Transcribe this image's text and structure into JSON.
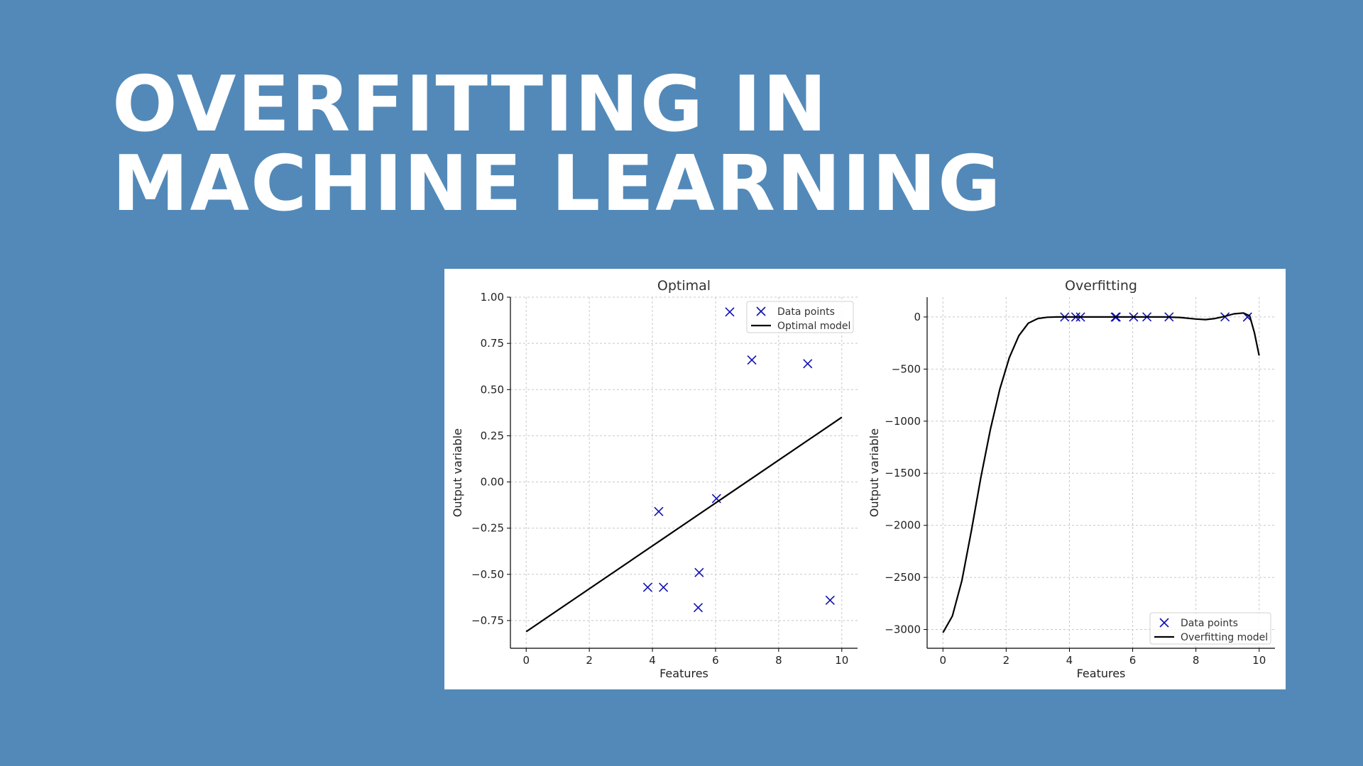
{
  "slide": {
    "title_line1": "OVERFITTING IN",
    "title_line2": "MACHINE LEARNING",
    "background_color": "#5289b8"
  },
  "colors": {
    "point_color": "#1010b0",
    "line_color": "#000000",
    "grid_color": "#c8c8c8"
  },
  "chart_data": [
    {
      "type": "scatter",
      "title": "Optimal",
      "xlabel": "Features",
      "ylabel": "Output variable",
      "xlim": [
        -0.5,
        10.5
      ],
      "ylim": [
        -0.9,
        1.0
      ],
      "xticks": [
        0,
        2,
        4,
        6,
        8,
        10
      ],
      "xtick_labels": [
        "0",
        "2",
        "4",
        "6",
        "8",
        "10"
      ],
      "yticks": [
        1.0,
        0.75,
        0.5,
        0.25,
        0.0,
        -0.25,
        -0.5,
        -0.75
      ],
      "ytick_labels": [
        "1.00",
        "0.75",
        "0.50",
        "0.25",
        "0.00",
        "−0.25",
        "−0.50",
        "−0.75"
      ],
      "grid": true,
      "legend_position": "top-right",
      "series": [
        {
          "name": "Data points",
          "kind": "scatter",
          "marker": "x",
          "x": [
            3.85,
            4.2,
            4.35,
            5.45,
            5.48,
            6.03,
            6.45,
            7.15,
            8.92,
            9.63
          ],
          "y": [
            -0.57,
            -0.16,
            -0.57,
            -0.68,
            -0.49,
            -0.09,
            0.92,
            0.66,
            0.64,
            -0.64
          ]
        },
        {
          "name": "Optimal model",
          "kind": "line",
          "x": [
            0,
            10
          ],
          "y": [
            -0.81,
            0.35
          ]
        }
      ]
    },
    {
      "type": "scatter",
      "title": "Overfitting",
      "xlabel": "Features",
      "ylabel": "Output variable",
      "xlim": [
        -0.5,
        10.5
      ],
      "ylim": [
        -3180,
        190
      ],
      "xticks": [
        0,
        2,
        4,
        6,
        8,
        10
      ],
      "xtick_labels": [
        "0",
        "2",
        "4",
        "6",
        "8",
        "10"
      ],
      "yticks": [
        0,
        -500,
        -1000,
        -1500,
        -2000,
        -2500,
        -3000
      ],
      "ytick_labels": [
        "0",
        "−500",
        "−1000",
        "−1500",
        "−2000",
        "−2500",
        "−3000"
      ],
      "grid": true,
      "legend_position": "bottom-right",
      "series": [
        {
          "name": "Data points",
          "kind": "scatter",
          "marker": "x",
          "x": [
            3.85,
            4.2,
            4.35,
            5.45,
            5.48,
            6.03,
            6.45,
            7.15,
            8.92,
            9.63
          ],
          "y": [
            -0.57,
            -0.16,
            -0.57,
            -0.68,
            -0.49,
            -0.09,
            0.92,
            0.66,
            0.64,
            -0.64
          ]
        },
        {
          "name": "Overfitting model",
          "kind": "line",
          "x": [
            0,
            0.3,
            0.6,
            0.9,
            1.2,
            1.5,
            1.8,
            2.1,
            2.4,
            2.7,
            3.0,
            3.3,
            3.6,
            3.85,
            4.5,
            5.0,
            5.5,
            6.0,
            6.5,
            7.0,
            7.5,
            8.0,
            8.3,
            8.6,
            8.9,
            9.2,
            9.5,
            9.7,
            9.85,
            10.0
          ],
          "y": [
            -3030,
            -2870,
            -2530,
            -2050,
            -1540,
            -1080,
            -690,
            -390,
            -180,
            -60,
            -15,
            -3,
            0,
            0,
            0,
            0,
            0,
            0,
            0,
            0,
            -5,
            -20,
            -25,
            -15,
            5,
            30,
            38,
            10,
            -150,
            -370
          ]
        }
      ]
    }
  ]
}
